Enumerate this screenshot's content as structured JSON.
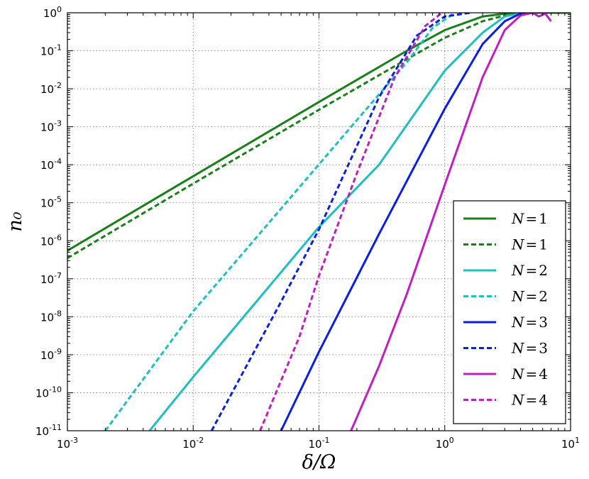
{
  "chart_data": {
    "type": "line",
    "title": "",
    "xlabel": "δ/Ω",
    "ylabel": "n₀",
    "xscale": "log",
    "yscale": "log",
    "xlim": [
      0.001,
      10
    ],
    "ylim": [
      1e-11,
      1
    ],
    "grid": true,
    "legend_position": "lower-right",
    "x_ticks": [
      {
        "value": 0.001,
        "base": "10",
        "exp": "-3"
      },
      {
        "value": 0.01,
        "base": "10",
        "exp": "-2"
      },
      {
        "value": 0.1,
        "base": "10",
        "exp": "-1"
      },
      {
        "value": 1,
        "base": "10",
        "exp": "0"
      },
      {
        "value": 10,
        "base": "10",
        "exp": "1"
      }
    ],
    "y_ticks": [
      {
        "value": 1,
        "base": "10",
        "exp": "0"
      },
      {
        "value": 0.1,
        "base": "10",
        "exp": "-1"
      },
      {
        "value": 0.01,
        "base": "10",
        "exp": "-2"
      },
      {
        "value": 0.001,
        "base": "10",
        "exp": "-3"
      },
      {
        "value": 0.0001,
        "base": "10",
        "exp": "-4"
      },
      {
        "value": 1e-05,
        "base": "10",
        "exp": "-5"
      },
      {
        "value": 1e-06,
        "base": "10",
        "exp": "-6"
      },
      {
        "value": 1e-07,
        "base": "10",
        "exp": "-7"
      },
      {
        "value": 1e-08,
        "base": "10",
        "exp": "-8"
      },
      {
        "value": 1e-09,
        "base": "10",
        "exp": "-9"
      },
      {
        "value": 1e-10,
        "base": "10",
        "exp": "-10"
      },
      {
        "value": 1e-11,
        "base": "10",
        "exp": "-11"
      }
    ],
    "series": [
      {
        "name": "N=1",
        "color": "#1a7f1a",
        "dash": false,
        "x": [
          0.001,
          0.01,
          0.1,
          0.5,
          1,
          2,
          3,
          5,
          10
        ],
        "y": [
          5.5e-07,
          5e-05,
          0.0045,
          0.1,
          0.35,
          0.8,
          0.95,
          1.0,
          1.0
        ]
      },
      {
        "name": "N=1",
        "color": "#1a7f1a",
        "dash": true,
        "x": [
          0.001,
          0.01,
          0.1,
          0.5,
          1,
          2,
          3,
          5,
          10
        ],
        "y": [
          3.5e-07,
          3.2e-05,
          0.0028,
          0.06,
          0.22,
          0.6,
          0.85,
          1.0,
          1.0
        ]
      },
      {
        "name": "N=2",
        "color": "#1fbfbf",
        "dash": false,
        "x": [
          0.0045,
          0.01,
          0.1,
          0.3,
          1,
          2,
          3,
          4,
          5
        ],
        "y": [
          1e-11,
          2.6e-10,
          2.3e-06,
          0.0001,
          0.03,
          0.3,
          0.8,
          0.97,
          1.0
        ]
      },
      {
        "name": "N=2",
        "color": "#1fbfbf",
        "dash": true,
        "x": [
          0.002,
          0.01,
          0.05,
          0.2,
          0.5,
          0.8,
          1.2
        ],
        "y": [
          1e-11,
          1.4e-08,
          7e-06,
          0.0015,
          0.05,
          0.4,
          1.0
        ]
      },
      {
        "name": "N=3",
        "color": "#0a1fe0",
        "dash": false,
        "x": [
          0.05,
          0.1,
          0.3,
          1,
          2,
          3,
          4,
          4.6,
          5.2
        ],
        "y": [
          1e-11,
          1.2e-09,
          1.5e-06,
          0.003,
          0.15,
          0.6,
          0.95,
          1.0,
          0.95
        ]
      },
      {
        "name": "N=3",
        "color": "#0a1fe0",
        "dash": true,
        "x": [
          0.014,
          0.05,
          0.1,
          0.3,
          0.6,
          1.0,
          1.6
        ],
        "y": [
          1e-11,
          2.5e-08,
          2e-06,
          0.006,
          0.25,
          0.8,
          1.0
        ]
      },
      {
        "name": "N=4",
        "color": "#c01fc0",
        "dash": false,
        "x": [
          0.18,
          0.3,
          0.5,
          1,
          2,
          3,
          4,
          5,
          5.6,
          6.3,
          7
        ],
        "y": [
          1e-11,
          5e-10,
          4e-08,
          3e-05,
          0.02,
          0.35,
          0.85,
          1.0,
          0.8,
          0.95,
          0.6
        ]
      },
      {
        "name": "N=4",
        "color": "#c01fc0",
        "dash": true,
        "x": [
          0.034,
          0.07,
          0.1,
          0.2,
          0.4,
          0.7,
          0.95
        ],
        "y": [
          1e-11,
          3e-09,
          1.2e-07,
          6e-05,
          0.02,
          0.45,
          1.0
        ]
      }
    ],
    "legend": {
      "entries": [
        {
          "label_var": "N",
          "label_eq": "=",
          "label_num": "1"
        },
        {
          "label_var": "N",
          "label_eq": "=",
          "label_num": "1"
        },
        {
          "label_var": "N",
          "label_eq": "=",
          "label_num": "2"
        },
        {
          "label_var": "N",
          "label_eq": "=",
          "label_num": "2"
        },
        {
          "label_var": "N",
          "label_eq": "=",
          "label_num": "3"
        },
        {
          "label_var": "N",
          "label_eq": "=",
          "label_num": "3"
        },
        {
          "label_var": "N",
          "label_eq": "=",
          "label_num": "4"
        },
        {
          "label_var": "N",
          "label_eq": "=",
          "label_num": "4"
        }
      ]
    }
  }
}
